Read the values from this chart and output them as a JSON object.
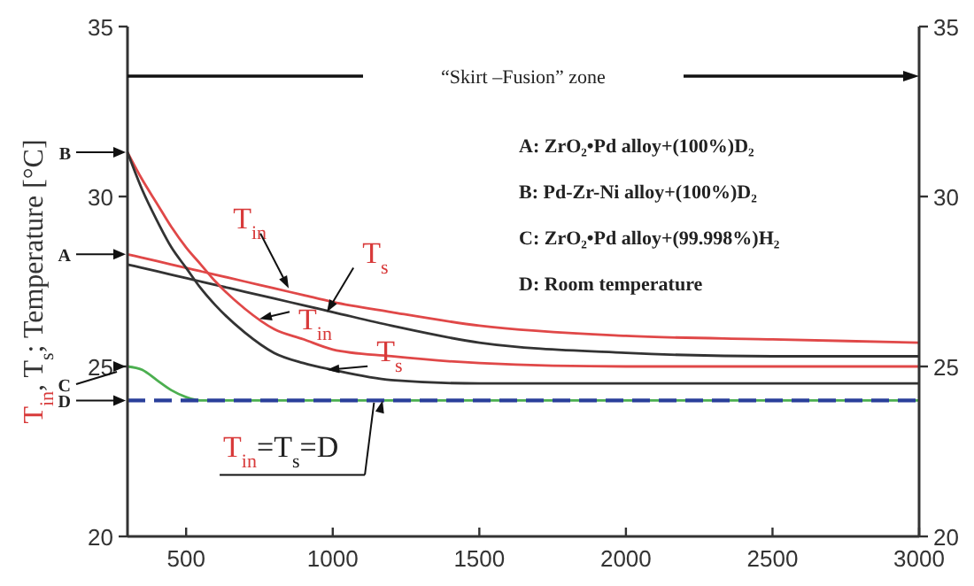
{
  "chart_data": {
    "type": "line",
    "ylabel": "T$_{in}$, T$_{s}$; Temperature [°C]",
    "x": [
      300,
      350,
      400,
      450,
      500,
      550,
      600,
      700,
      800,
      900,
      1000,
      1200,
      1500,
      2000,
      2500,
      3000
    ],
    "series": [
      {
        "color": "#e04848",
        "values": [
          28.3,
          28.2,
          28.1,
          28.0,
          27.9,
          27.8,
          27.7,
          27.5,
          27.3,
          27.1,
          26.9,
          26.6,
          26.2,
          25.9,
          25.8,
          25.7
        ]
      },
      {
        "color": "#333333",
        "values": [
          28.0,
          27.9,
          27.8,
          27.7,
          27.6,
          27.5,
          27.4,
          27.2,
          27.0,
          26.8,
          26.6,
          26.2,
          25.7,
          25.4,
          25.3,
          25.3
        ]
      },
      {
        "color": "#e04848",
        "values": [
          31.3,
          30.5,
          29.8,
          29.1,
          28.5,
          28.0,
          27.5,
          26.7,
          26.1,
          25.8,
          25.5,
          25.3,
          25.1,
          25.0,
          25.0,
          25.0
        ]
      },
      {
        "color": "#333333",
        "values": [
          31.3,
          30.2,
          29.3,
          28.5,
          27.9,
          27.3,
          26.8,
          26.0,
          25.4,
          25.1,
          24.9,
          24.6,
          24.5,
          24.5,
          24.5,
          24.5
        ]
      },
      {
        "color": "#4caf50",
        "values": [
          25.0,
          24.9,
          24.6,
          24.3,
          24.1,
          24.0,
          24.0,
          24.0,
          24.0,
          24.0,
          24.0,
          24.0,
          24.0,
          24.0,
          24.0,
          24.0
        ]
      },
      {
        "color": "#2a3f9a",
        "line_style": "dashed",
        "values": [
          24.0,
          24.0,
          24.0,
          24.0,
          24.0,
          24.0,
          24.0,
          24.0,
          24.0,
          24.0,
          24.0,
          24.0,
          24.0,
          24.0,
          24.0,
          24.0
        ]
      }
    ],
    "xlim": [
      300,
      3000
    ],
    "xticks": [
      500,
      1000,
      1500,
      2000,
      2500,
      3000
    ],
    "ylim": [
      20,
      35
    ],
    "yticks": [
      20,
      25,
      30,
      35
    ],
    "y2lim": [
      20,
      35
    ],
    "y2ticks": [
      20,
      25,
      30,
      35
    ],
    "grid": false,
    "marker": "none",
    "annotations": [
      "“Skirt –Fusion” zone",
      {
        "text": "A",
        "x": 300,
        "y": 28.3
      },
      {
        "text": "B",
        "x": 300,
        "y": 31.3
      },
      {
        "text": "C",
        "x": 300,
        "y": 25.0
      },
      {
        "text": "D",
        "x": 300,
        "y": 24.0
      },
      "A: ZrO₂•Pd alloy+(100%)D₂",
      "B: Pd-Zr-Ni alloy+(100%)D₂",
      "C: ZrO₂•Pd alloy+(99.998%)H₂",
      "D: Room temperature",
      {
        "text": "T$_{in}$",
        "x": 850,
        "y": 27.3
      },
      {
        "text": "T$_{s}$",
        "x": 980,
        "y": 26.6
      },
      {
        "text": "T$_{in}$",
        "x": 750,
        "y": 26.4
      },
      {
        "text": "T$_{s}$",
        "x": 980,
        "y": 24.9
      },
      {
        "text": "T$_{in}$=T$_{s}$=D",
        "x": 1170,
        "y": 24.0
      }
    ]
  }
}
